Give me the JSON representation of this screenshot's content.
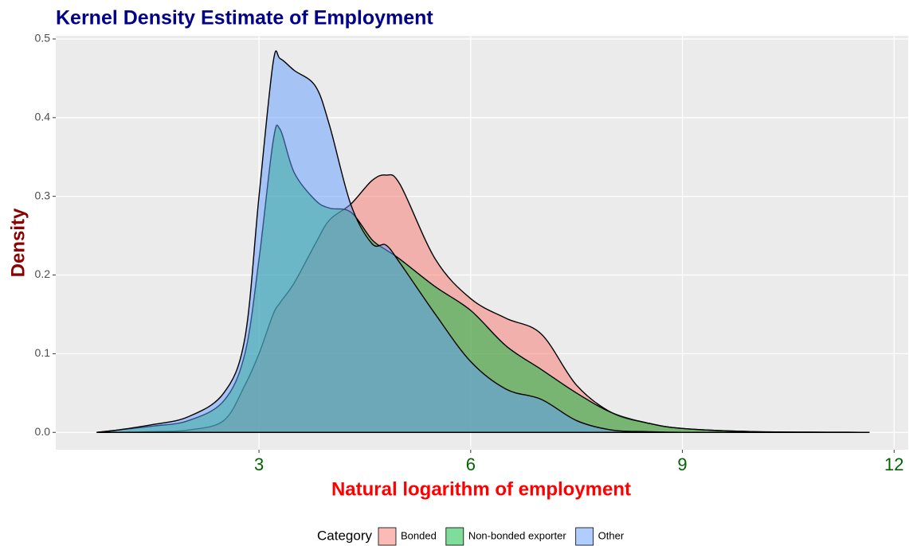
{
  "chart_data": {
    "type": "density",
    "title": "Kernel Density Estimate of Employment",
    "x_label": "Natural logarithm of employment",
    "y_label": "Density",
    "legend_title": "Category",
    "legend_position": "bottom",
    "grid": true,
    "x": [
      0.7,
      1,
      1.5,
      2,
      2.5,
      2.8,
      3,
      3.2,
      3.3,
      3.5,
      3.8,
      4,
      4.3,
      4.6,
      4.8,
      5,
      5.5,
      6,
      6.5,
      7,
      7.5,
      8,
      8.5,
      9,
      10,
      11.65
    ],
    "series": [
      {
        "name": "Bonded",
        "color": "#F8766D",
        "values": [
          0,
          0,
          0.001,
          0.003,
          0.015,
          0.06,
          0.1,
          0.15,
          0.165,
          0.19,
          0.24,
          0.27,
          0.29,
          0.32,
          0.327,
          0.315,
          0.22,
          0.17,
          0.145,
          0.125,
          0.06,
          0.025,
          0.012,
          0.005,
          0.001,
          0
        ]
      },
      {
        "name": "Non-bonded exporter",
        "color": "#00BA38",
        "values": [
          0,
          0.003,
          0.008,
          0.015,
          0.04,
          0.1,
          0.22,
          0.37,
          0.385,
          0.33,
          0.295,
          0.285,
          0.28,
          0.245,
          0.232,
          0.22,
          0.185,
          0.155,
          0.11,
          0.08,
          0.05,
          0.025,
          0.012,
          0.005,
          0.001,
          0
        ]
      },
      {
        "name": "Other",
        "color": "#619CFF",
        "values": [
          0,
          0.003,
          0.01,
          0.02,
          0.05,
          0.12,
          0.3,
          0.47,
          0.475,
          0.46,
          0.44,
          0.39,
          0.29,
          0.24,
          0.238,
          0.215,
          0.15,
          0.09,
          0.055,
          0.042,
          0.015,
          0.003,
          0.001,
          0,
          0,
          0
        ]
      }
    ],
    "xlim": [
      0.12,
      12.2
    ],
    "ylim": [
      -0.022,
      0.504
    ],
    "xticks": [
      3,
      6,
      9,
      12
    ],
    "yticks": [
      {
        "value": 0,
        "label": "0.0"
      },
      0.1,
      0.2,
      0.3,
      0.4,
      0.5
    ]
  }
}
